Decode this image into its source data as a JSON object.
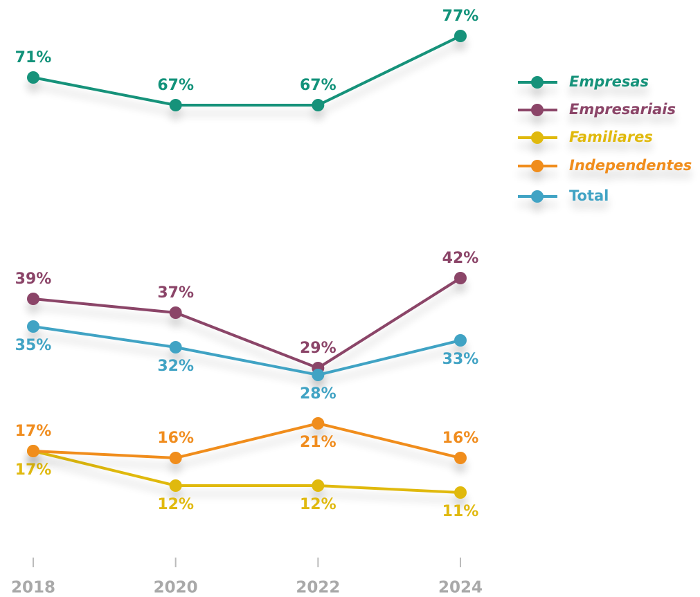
{
  "chart_data": {
    "type": "line",
    "x": [
      2018,
      2020,
      2022,
      2024
    ],
    "xlim": [
      2018,
      2024
    ],
    "xticks": [
      2018,
      2020,
      2022,
      2024
    ],
    "ylim": [
      0,
      80
    ],
    "legend": "right",
    "series": [
      {
        "name": "Empresas",
        "color": "#12927a",
        "values": [
          71,
          67,
          67,
          77
        ],
        "value_labels": [
          "71%",
          "67%",
          "67%",
          "77%"
        ]
      },
      {
        "name": "Empresariais",
        "color": "#8b4468",
        "values": [
          39,
          37,
          29,
          42
        ],
        "value_labels": [
          "39%",
          "37%",
          "29%",
          "42%"
        ]
      },
      {
        "name": "Familiares",
        "color": "#e0b90f",
        "values": [
          17,
          12,
          12,
          11
        ],
        "value_labels": [
          "17%",
          "12%",
          "12%",
          "11%"
        ]
      },
      {
        "name": "Independentes",
        "color": "#f08d1f",
        "values": [
          17,
          16,
          21,
          16
        ],
        "value_labels": [
          "17%",
          "16%",
          "21%",
          "16%"
        ]
      },
      {
        "name": "Total",
        "color": "#41a3c4",
        "values": [
          35,
          32,
          28,
          33
        ],
        "value_labels": [
          "35%",
          "32%",
          "28%",
          "33%"
        ]
      }
    ]
  }
}
